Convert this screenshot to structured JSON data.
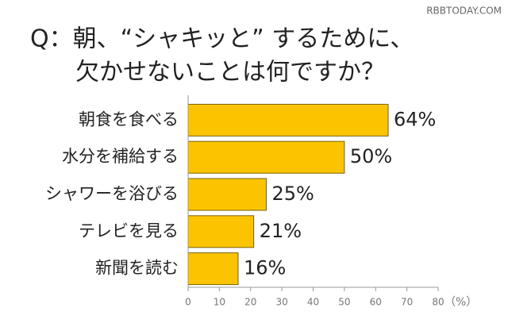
{
  "watermark": "RBBTODAY.COM",
  "chart_data": {
    "type": "hbar",
    "title": [
      "Q：朝、“シャキッと” するために、",
      "欠かせないことは何ですか？"
    ],
    "categories": [
      "朝食を食べる",
      "水分を補給する",
      "シャワーを浴びる",
      "テレビを見る",
      "新聞を読む"
    ],
    "values": [
      64,
      50,
      25,
      21,
      16
    ],
    "value_labels": [
      "64%",
      "50%",
      "25%",
      "21%",
      "16%"
    ],
    "color": "#fcc400",
    "xlim": [
      0,
      80
    ],
    "xticks": [
      0,
      10,
      20,
      30,
      40,
      50,
      60,
      70,
      80
    ],
    "x_unit": "（%）"
  }
}
